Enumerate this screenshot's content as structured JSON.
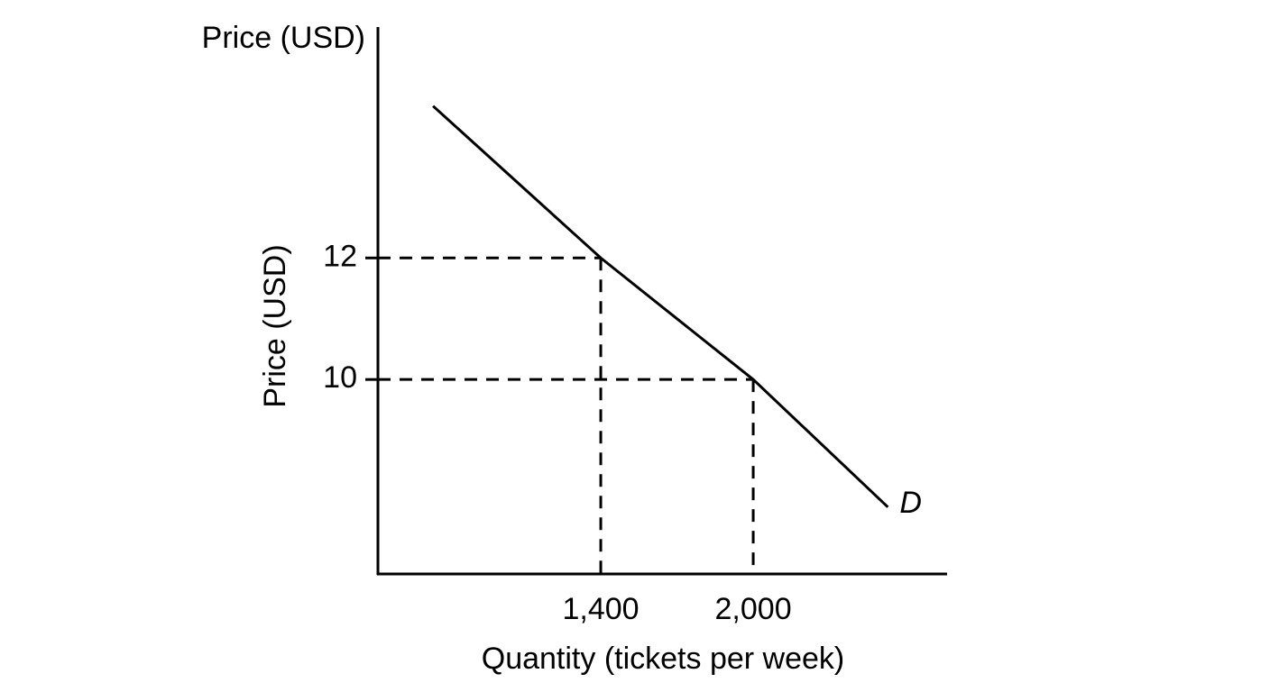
{
  "chart_data": {
    "type": "line",
    "y_axis_title": "Price (USD)",
    "ylabel": "Price (USD)",
    "xlabel": "Quantity (tickets per week)",
    "x": [
      740,
      1400,
      2000,
      2530
    ],
    "series": [
      {
        "name": "D",
        "color": "#000000",
        "values": [
          14.5,
          12,
          10,
          7.9
        ]
      }
    ],
    "xlim": [
      523,
      2763
    ],
    "ylim": [
      6.8,
      15.8
    ],
    "xticks": [
      {
        "value": 1400,
        "label": "1,400"
      },
      {
        "value": 2000,
        "label": "2,000"
      }
    ],
    "yticks": [
      10,
      12
    ],
    "guide_points": [
      1,
      2
    ]
  }
}
